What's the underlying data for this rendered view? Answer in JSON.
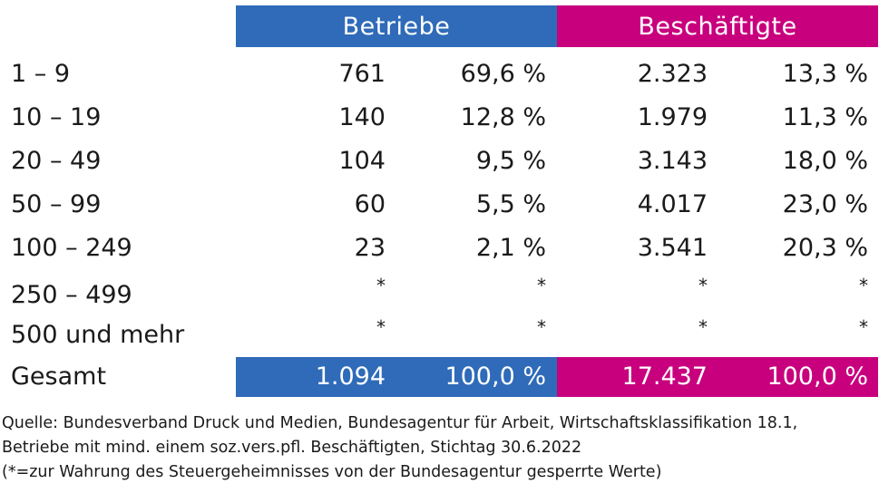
{
  "header": {
    "betriebe": "Betriebe",
    "beschaeftigte": "Beschäftigte"
  },
  "rows": [
    {
      "label": "1 – 9",
      "b_num": "761",
      "b_pct": "69,6 %",
      "e_num": "2.323",
      "e_pct": "13,3 %"
    },
    {
      "label": "10 – 19",
      "b_num": "140",
      "b_pct": "12,8 %",
      "e_num": "1.979",
      "e_pct": "11,3 %"
    },
    {
      "label": "20 – 49",
      "b_num": "104",
      "b_pct": "9,5 %",
      "e_num": "3.143",
      "e_pct": "18,0 %"
    },
    {
      "label": "50 – 99",
      "b_num": "60",
      "b_pct": "5,5 %",
      "e_num": "4.017",
      "e_pct": "23,0 %"
    },
    {
      "label": "100 – 249",
      "b_num": "23",
      "b_pct": "2,1 %",
      "e_num": "3.541",
      "e_pct": "20,3 %"
    },
    {
      "label": "250 – 499",
      "b_num": "*",
      "b_pct": "*",
      "e_num": "*",
      "e_pct": "*"
    },
    {
      "label": "500 und mehr",
      "b_num": "*",
      "b_pct": "*",
      "e_num": "*",
      "e_pct": "*"
    }
  ],
  "total": {
    "label": "Gesamt",
    "b_num": "1.094",
    "b_pct": "100,0 %",
    "e_num": "17.437",
    "e_pct": "100,0 %"
  },
  "source": {
    "line1": "Quelle: Bundesverband Druck und Medien, Bundesagentur für Arbeit, Wirtschaftsklassifikation 18.1,",
    "line2": "Betriebe mit mind. einem soz.vers.pfl. Beschäftigten, Stichtag 30.6.2022",
    "line3": "(*=zur Wahrung des Steuergeheimnisses von der Bundesagentur gesperrte Werte)"
  },
  "colors": {
    "betriebe": "#2f6bb8",
    "beschaeftigte": "#c8007e"
  }
}
